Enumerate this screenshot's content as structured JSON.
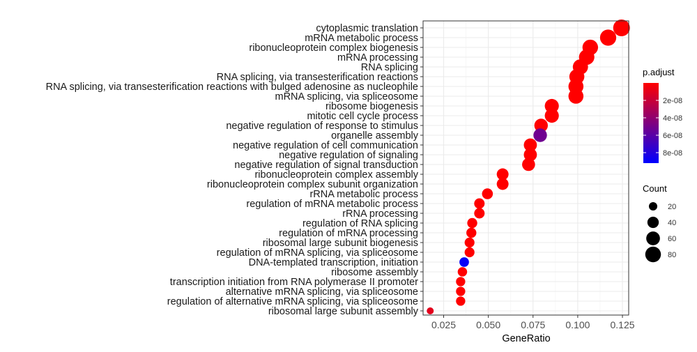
{
  "chart_data": {
    "type": "scatter",
    "xlabel": "GeneRatio",
    "ylabel": "",
    "title": "",
    "xlim": [
      0.0135,
      0.1285
    ],
    "xticks": [
      0.025,
      0.05,
      0.075,
      0.1,
      0.125
    ],
    "xtick_labels": [
      "0.025",
      "0.050",
      "0.075",
      "0.100",
      "0.125"
    ],
    "grid": true,
    "legend_position": "right",
    "points": [
      {
        "term": "cytoplasmic translation",
        "gene_ratio": 0.1245,
        "count": 92,
        "p_adjust": 0.0
      },
      {
        "term": "mRNA metabolic process",
        "gene_ratio": 0.117,
        "count": 86,
        "p_adjust": 0.0
      },
      {
        "term": "ribonucleoprotein complex biogenesis",
        "gene_ratio": 0.107,
        "count": 79,
        "p_adjust": 0.0
      },
      {
        "term": "mRNA processing",
        "gene_ratio": 0.105,
        "count": 77,
        "p_adjust": 0.0
      },
      {
        "term": "RNA splicing",
        "gene_ratio": 0.1015,
        "count": 75,
        "p_adjust": 0.0
      },
      {
        "term": "RNA splicing, via transesterification reactions",
        "gene_ratio": 0.0995,
        "count": 73,
        "p_adjust": 0.0
      },
      {
        "term": "RNA splicing, via transesterification reactions with bulged adenosine as nucleophile",
        "gene_ratio": 0.099,
        "count": 73,
        "p_adjust": 0.0
      },
      {
        "term": "mRNA splicing, via spliceosome",
        "gene_ratio": 0.099,
        "count": 73,
        "p_adjust": 0.0
      },
      {
        "term": "ribosome biogenesis",
        "gene_ratio": 0.0855,
        "count": 63,
        "p_adjust": 0.0
      },
      {
        "term": "mitotic cell cycle process",
        "gene_ratio": 0.0855,
        "count": 63,
        "p_adjust": 0.0
      },
      {
        "term": "negative regulation of response to stimulus",
        "gene_ratio": 0.0795,
        "count": 58,
        "p_adjust": 0.0
      },
      {
        "term": "organelle assembly",
        "gene_ratio": 0.079,
        "count": 58,
        "p_adjust": 5.2e-08
      },
      {
        "term": "negative regulation of cell communication",
        "gene_ratio": 0.0735,
        "count": 54,
        "p_adjust": 0.0
      },
      {
        "term": "negative regulation of signaling",
        "gene_ratio": 0.0735,
        "count": 54,
        "p_adjust": 0.0
      },
      {
        "term": "negative regulation of signal transduction",
        "gene_ratio": 0.0725,
        "count": 53,
        "p_adjust": 0.0
      },
      {
        "term": "ribonucleoprotein complex assembly",
        "gene_ratio": 0.058,
        "count": 43,
        "p_adjust": 0.0
      },
      {
        "term": "ribonucleoprotein complex subunit organization",
        "gene_ratio": 0.058,
        "count": 43,
        "p_adjust": 0.0
      },
      {
        "term": "rRNA metabolic process",
        "gene_ratio": 0.0495,
        "count": 36,
        "p_adjust": 0.0
      },
      {
        "term": "regulation of mRNA metabolic process",
        "gene_ratio": 0.045,
        "count": 33,
        "p_adjust": 0.0
      },
      {
        "term": "rRNA processing",
        "gene_ratio": 0.045,
        "count": 33,
        "p_adjust": 0.0
      },
      {
        "term": "regulation of RNA splicing",
        "gene_ratio": 0.041,
        "count": 30,
        "p_adjust": 0.0
      },
      {
        "term": "regulation of mRNA processing",
        "gene_ratio": 0.0405,
        "count": 30,
        "p_adjust": 0.0
      },
      {
        "term": "ribosomal large subunit biogenesis",
        "gene_ratio": 0.0395,
        "count": 29,
        "p_adjust": 0.0
      },
      {
        "term": "regulation of mRNA splicing, via spliceosome",
        "gene_ratio": 0.0395,
        "count": 29,
        "p_adjust": 0.0
      },
      {
        "term": "DNA-templated transcription, initiation",
        "gene_ratio": 0.0365,
        "count": 27,
        "p_adjust": 8.9e-08
      },
      {
        "term": "ribosome assembly",
        "gene_ratio": 0.0355,
        "count": 26,
        "p_adjust": 0.0
      },
      {
        "term": "transcription initiation from RNA polymerase II promoter",
        "gene_ratio": 0.0345,
        "count": 25,
        "p_adjust": 0.0
      },
      {
        "term": "alternative mRNA splicing, via spliceosome",
        "gene_ratio": 0.0345,
        "count": 25,
        "p_adjust": 0.0
      },
      {
        "term": "regulation of alternative mRNA splicing, via spliceosome",
        "gene_ratio": 0.0345,
        "count": 25,
        "p_adjust": 0.0
      },
      {
        "term": "ribosomal large subunit assembly",
        "gene_ratio": 0.0175,
        "count": 13,
        "p_adjust": 1e-08
      }
    ],
    "color_legend": {
      "title": "p.adjust",
      "domain": [
        0.0,
        9.2e-08
      ],
      "low_color": "#ff0000",
      "high_color": "#0000ff",
      "ticks": [
        2e-08,
        4e-08,
        6e-08,
        8e-08
      ],
      "tick_labels": [
        "2e-08",
        "4e-08",
        "6e-08",
        "8e-08"
      ]
    },
    "size_legend": {
      "title": "Count",
      "values": [
        20,
        40,
        60,
        80
      ],
      "labels": [
        "20",
        "40",
        "60",
        "80"
      ]
    },
    "colors": {
      "panel_background": "#ffffff",
      "panel_border": "#333333",
      "grid_major": "#ebebeb",
      "grid_minor": "#f5f5f5",
      "tick_color": "#333333"
    }
  }
}
